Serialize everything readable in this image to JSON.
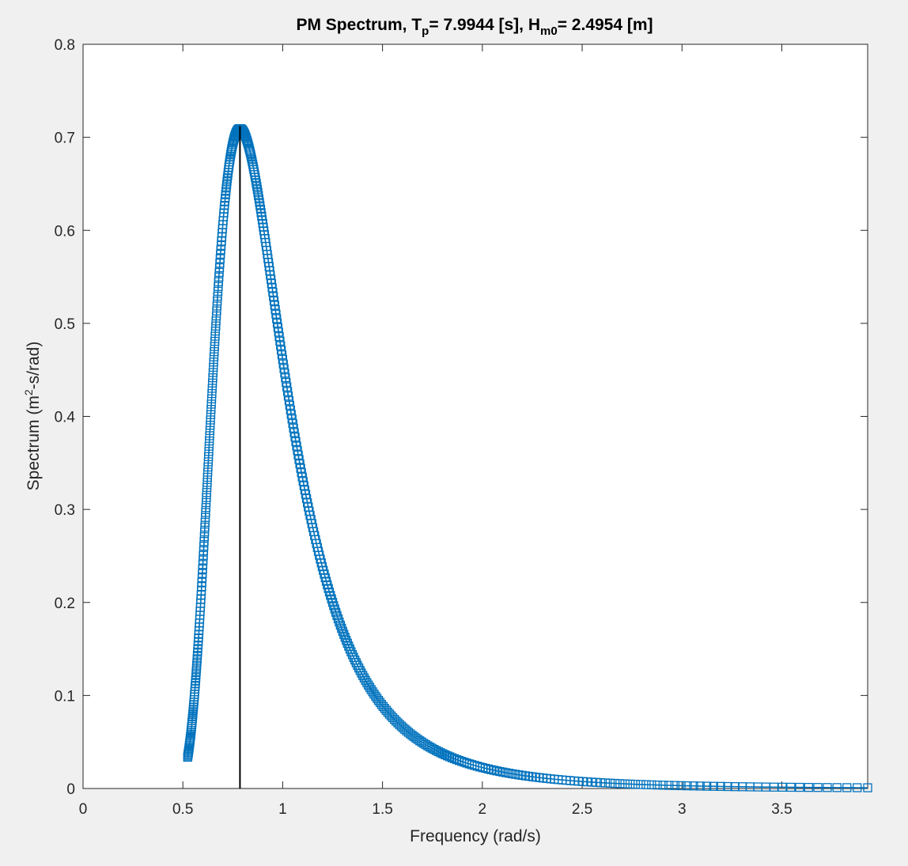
{
  "chart_data": {
    "type": "line",
    "title": {
      "main": "PM Spectrum, T",
      "tp_sub": "p",
      "tp_value": "= 7.9944 [s], H",
      "hm_sub": "m0",
      "hm_value": "= 2.4954 [m]"
    },
    "xlabel": "Frequency (rad/s)",
    "ylabel": {
      "pre": "Spectrum (m",
      "sup": "2",
      "post": "-s/rad)"
    },
    "xlim": [
      0,
      3.93
    ],
    "ylim": [
      0,
      0.8
    ],
    "xticks": [
      0,
      0.5,
      1,
      1.5,
      2,
      2.5,
      3,
      3.5
    ],
    "xtick_labels": [
      "0",
      "0.5",
      "1",
      "1.5",
      "2",
      "2.5",
      "3",
      "3.5"
    ],
    "yticks": [
      0,
      0.1,
      0.2,
      0.3,
      0.4,
      0.5,
      0.6,
      0.7,
      0.8
    ],
    "ytick_labels": [
      "0",
      "0.1",
      "0.2",
      "0.3",
      "0.4",
      "0.5",
      "0.6",
      "0.7",
      "0.8"
    ],
    "grid": false,
    "series": [
      {
        "marker": "square",
        "color": "#0072bd",
        "Tp": 7.9944,
        "Hm0": 2.4954,
        "x_start": 0.524,
        "x_end": 3.93,
        "n_points": 480
      }
    ],
    "peak_line": {
      "x": 0.786,
      "y": 0.712,
      "color": "#000000"
    }
  },
  "colors": {
    "figure_bg": "#f0f0f0",
    "axes_bg": "#ffffff",
    "axes_line": "#262626",
    "series": "#0072bd"
  }
}
